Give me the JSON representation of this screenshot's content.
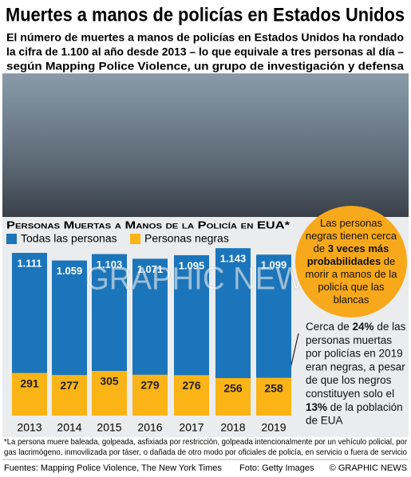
{
  "chart_data": {
    "type": "bar",
    "title": "Muertes a manos de policías en Estados Unidos",
    "subtitle": [
      "El número de muertes a manos de policías en Estados Unidos ha rondado",
      "la cifra de 1.100 al año desde 2013 – lo que equivale a tres personas al día –",
      "según Mapping Police Violence, un grupo de investigación y defensa"
    ],
    "chart_title": "Personas Muertas a Manos de la Policía en EUA*",
    "categories": [
      "2013",
      "2014",
      "2015",
      "2016",
      "2017",
      "2018",
      "2019"
    ],
    "series": [
      {
        "name": "Todas las personas",
        "color": "#1b75bb",
        "values": [
          1111,
          1059,
          1103,
          1071,
          1095,
          1143,
          1099
        ],
        "value_labels": [
          "1.111",
          "1.059",
          "1.103",
          "1.071",
          "1.095",
          "1.143",
          "1.099"
        ]
      },
      {
        "name": "Personas negras",
        "color": "#fbb416",
        "values": [
          291,
          277,
          305,
          279,
          276,
          256,
          258
        ]
      }
    ],
    "annotations": {
      "circle": [
        [
          {
            "text": "Las personas"
          }
        ],
        [
          {
            "text": "negras tienen cerca"
          }
        ],
        [
          {
            "text": "de "
          },
          {
            "text": "3 veces más",
            "bold": true
          }
        ],
        [
          {
            "text": "probabilidades",
            "bold": true
          },
          {
            "text": " de"
          }
        ],
        [
          {
            "text": "morir a manos de la"
          }
        ],
        [
          {
            "text": "policía que las"
          }
        ],
        [
          {
            "text": "blancas"
          }
        ]
      ],
      "side": [
        [
          {
            "text": "Cerca de "
          },
          {
            "text": "24%",
            "bold": true
          },
          {
            "text": " de las"
          }
        ],
        [
          {
            "text": "personas muertas"
          }
        ],
        [
          {
            "text": "por policías en 2019"
          }
        ],
        [
          {
            "text": "eran negras, a pesar"
          }
        ],
        [
          {
            "text": "de que los negros"
          }
        ],
        [
          {
            "text": "constituyen solo el"
          }
        ],
        [
          {
            "text": "13%",
            "bold": true
          },
          {
            "text": " de la población"
          }
        ],
        [
          {
            "text": "de EUA"
          }
        ]
      ]
    },
    "footnote": [
      "*La persona muere baleada, golpeada, asfixiada por restricción, golpeada intencionalmente por un vehículo policial, por",
      "gas lacrimógeno, inmovilizada por táser, o dañada de otro modo por oficiales de policía, en servicio o fuera de servicio"
    ],
    "source": "Fuentes: Mapping Police Violence, The New York Times",
    "photo_credit": "Foto: Getty Images",
    "copyright": "© GRAPHIC NEWS",
    "watermark": "GRAPHIC NEWS"
  }
}
